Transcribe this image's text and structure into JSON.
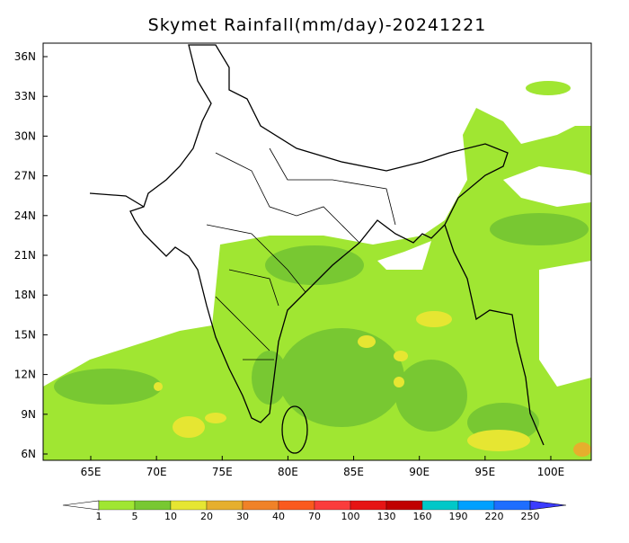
{
  "title": "Skymet Rainfall(mm/day)-20241221",
  "lon_ticks": [
    "65E",
    "70E",
    "75E",
    "80E",
    "85E",
    "90E",
    "95E",
    "100E"
  ],
  "lat_ticks": [
    "6N",
    "9N",
    "12N",
    "15N",
    "18N",
    "21N",
    "24N",
    "27N",
    "30N",
    "33N",
    "36N"
  ],
  "colorbar": {
    "labels": [
      "1",
      "5",
      "10",
      "20",
      "30",
      "40",
      "70",
      "100",
      "130",
      "160",
      "190",
      "220",
      "250"
    ],
    "colors": [
      "#a0e632",
      "#78c832",
      "#e6e632",
      "#e6af2d",
      "#f08228",
      "#fa5a1e",
      "#fa3c3c",
      "#e61414",
      "#c00000",
      "#00c8c8",
      "#00a0ff",
      "#1e6eff"
    ],
    "under_color": "#ffffff",
    "over_color": "#3c3cff"
  }
}
